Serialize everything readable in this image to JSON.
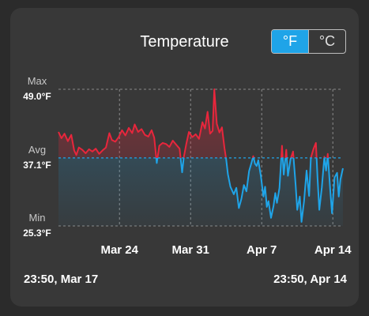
{
  "title": "Temperature",
  "units": {
    "options": [
      "°F",
      "°C"
    ],
    "selected": "°F"
  },
  "range": {
    "start": "23:50, Mar 17",
    "end": "23:50, Apr 14"
  },
  "chart_data": {
    "type": "line",
    "title": "Temperature",
    "x_range": [
      "2024-03-17T23:50",
      "2024-04-14T23:50"
    ],
    "x_ticks": [
      {
        "date": "2024-03-24T00:00",
        "label": "Mar 24"
      },
      {
        "date": "2024-03-31T00:00",
        "label": "Mar 31"
      },
      {
        "date": "2024-04-07T00:00",
        "label": "Apr 7"
      },
      {
        "date": "2024-04-14T00:00",
        "label": "Apr 14"
      }
    ],
    "y_markers": [
      {
        "label": "Max",
        "value": 49.0,
        "text": "49.0°F"
      },
      {
        "label": "Avg",
        "value": 37.1,
        "text": "37.1°F"
      },
      {
        "label": "Min",
        "value": 25.3,
        "text": "25.3°F"
      }
    ],
    "ylim": [
      25.3,
      49.0
    ],
    "grid": true,
    "colors": {
      "above_avg": "#e8263c",
      "below_avg": "#1fa4e8",
      "grid": "#8a8a8a"
    },
    "series": [
      {
        "points": [
          [
            "2024-03-17T23:50",
            41.6
          ],
          [
            "2024-03-18T07:00",
            40.5
          ],
          [
            "2024-03-18T14:00",
            41.3
          ],
          [
            "2024-03-18T22:00",
            40.0
          ],
          [
            "2024-03-19T06:00",
            41.1
          ],
          [
            "2024-03-19T13:00",
            38.4
          ],
          [
            "2024-03-19T18:00",
            37.6
          ],
          [
            "2024-03-20T00:00",
            38.9
          ],
          [
            "2024-03-20T08:00",
            38.5
          ],
          [
            "2024-03-20T16:00",
            37.9
          ],
          [
            "2024-03-21T00:00",
            38.6
          ],
          [
            "2024-03-21T08:00",
            38.2
          ],
          [
            "2024-03-21T16:00",
            38.7
          ],
          [
            "2024-03-22T00:00",
            37.8
          ],
          [
            "2024-03-22T08:00",
            38.4
          ],
          [
            "2024-03-22T16:00",
            38.9
          ],
          [
            "2024-03-23T00:00",
            41.4
          ],
          [
            "2024-03-23T06:00",
            40.2
          ],
          [
            "2024-03-23T14:00",
            39.9
          ],
          [
            "2024-03-23T22:00",
            40.7
          ],
          [
            "2024-03-24T06:00",
            41.9
          ],
          [
            "2024-03-24T14:00",
            41.0
          ],
          [
            "2024-03-24T22:00",
            42.3
          ],
          [
            "2024-03-25T06:00",
            41.4
          ],
          [
            "2024-03-25T12:00",
            42.9
          ],
          [
            "2024-03-25T20:00",
            41.6
          ],
          [
            "2024-03-26T04:00",
            42.1
          ],
          [
            "2024-03-26T12:00",
            41.1
          ],
          [
            "2024-03-26T20:00",
            40.8
          ],
          [
            "2024-03-27T04:00",
            41.9
          ],
          [
            "2024-03-27T10:00",
            40.6
          ],
          [
            "2024-03-27T16:00",
            36.2
          ],
          [
            "2024-03-27T22:00",
            39.2
          ],
          [
            "2024-03-28T06:00",
            39.7
          ],
          [
            "2024-03-28T14:00",
            39.5
          ],
          [
            "2024-03-28T22:00",
            39.0
          ],
          [
            "2024-03-29T06:00",
            40.1
          ],
          [
            "2024-03-29T14:00",
            39.4
          ],
          [
            "2024-03-29T22:00",
            38.7
          ],
          [
            "2024-03-30T04:00",
            34.6
          ],
          [
            "2024-03-30T08:00",
            37.3
          ],
          [
            "2024-03-30T14:00",
            39.6
          ],
          [
            "2024-03-30T20:00",
            41.6
          ],
          [
            "2024-03-31T04:00",
            40.7
          ],
          [
            "2024-03-31T12:00",
            41.2
          ],
          [
            "2024-03-31T20:00",
            40.4
          ],
          [
            "2024-04-01T04:00",
            43.3
          ],
          [
            "2024-04-01T10:00",
            42.2
          ],
          [
            "2024-04-01T16:00",
            45.1
          ],
          [
            "2024-04-01T22:00",
            41.3
          ],
          [
            "2024-04-02T04:00",
            41.8
          ],
          [
            "2024-04-02T08:00",
            49.0
          ],
          [
            "2024-04-02T14:00",
            43.0
          ],
          [
            "2024-04-02T20:00",
            41.5
          ],
          [
            "2024-04-03T02:00",
            42.4
          ],
          [
            "2024-04-03T08:00",
            38.8
          ],
          [
            "2024-04-03T12:00",
            36.9
          ],
          [
            "2024-04-03T16:00",
            34.3
          ],
          [
            "2024-04-03T22:00",
            32.1
          ],
          [
            "2024-04-04T06:00",
            30.8
          ],
          [
            "2024-04-04T12:00",
            31.9
          ],
          [
            "2024-04-04T18:00",
            28.4
          ],
          [
            "2024-04-05T00:00",
            30.0
          ],
          [
            "2024-04-05T06:00",
            32.4
          ],
          [
            "2024-04-05T12:00",
            31.3
          ],
          [
            "2024-04-05T18:00",
            34.8
          ],
          [
            "2024-04-06T00:00",
            36.3
          ],
          [
            "2024-04-06T04:00",
            37.4
          ],
          [
            "2024-04-06T08:00",
            36.1
          ],
          [
            "2024-04-06T12:00",
            35.7
          ],
          [
            "2024-04-06T16:00",
            36.7
          ],
          [
            "2024-04-06T22:00",
            33.9
          ],
          [
            "2024-04-07T04:00",
            30.4
          ],
          [
            "2024-04-07T08:00",
            32.1
          ],
          [
            "2024-04-07T12:00",
            28.6
          ],
          [
            "2024-04-07T16:00",
            29.6
          ],
          [
            "2024-04-07T22:00",
            26.7
          ],
          [
            "2024-04-08T04:00",
            28.8
          ],
          [
            "2024-04-08T08:00",
            31.0
          ],
          [
            "2024-04-08T12:00",
            29.3
          ],
          [
            "2024-04-08T18:00",
            31.9
          ],
          [
            "2024-04-09T00:00",
            39.2
          ],
          [
            "2024-04-09T04:00",
            34.2
          ],
          [
            "2024-04-09T10:00",
            38.5
          ],
          [
            "2024-04-09T14:00",
            34.0
          ],
          [
            "2024-04-09T20:00",
            36.9
          ],
          [
            "2024-04-10T02:00",
            38.2
          ],
          [
            "2024-04-10T08:00",
            32.5
          ],
          [
            "2024-04-10T12:00",
            28.1
          ],
          [
            "2024-04-10T18:00",
            30.4
          ],
          [
            "2024-04-10T22:00",
            26.0
          ],
          [
            "2024-04-11T04:00",
            29.6
          ],
          [
            "2024-04-11T10:00",
            34.9
          ],
          [
            "2024-04-11T16:00",
            30.5
          ],
          [
            "2024-04-11T20:00",
            37.1
          ],
          [
            "2024-04-12T02:00",
            38.6
          ],
          [
            "2024-04-12T08:00",
            39.7
          ],
          [
            "2024-04-12T12:00",
            33.5
          ],
          [
            "2024-04-12T16:00",
            28.1
          ],
          [
            "2024-04-12T22:00",
            32.0
          ],
          [
            "2024-04-13T04:00",
            37.3
          ],
          [
            "2024-04-13T08:00",
            34.9
          ],
          [
            "2024-04-13T12:00",
            37.8
          ],
          [
            "2024-04-13T18:00",
            31.4
          ],
          [
            "2024-04-13T22:00",
            27.5
          ],
          [
            "2024-04-14T04:00",
            33.7
          ],
          [
            "2024-04-14T10:00",
            34.5
          ],
          [
            "2024-04-14T14:00",
            30.4
          ],
          [
            "2024-04-14T18:00",
            33.4
          ],
          [
            "2024-04-14T23:50",
            35.3
          ]
        ]
      }
    ]
  }
}
